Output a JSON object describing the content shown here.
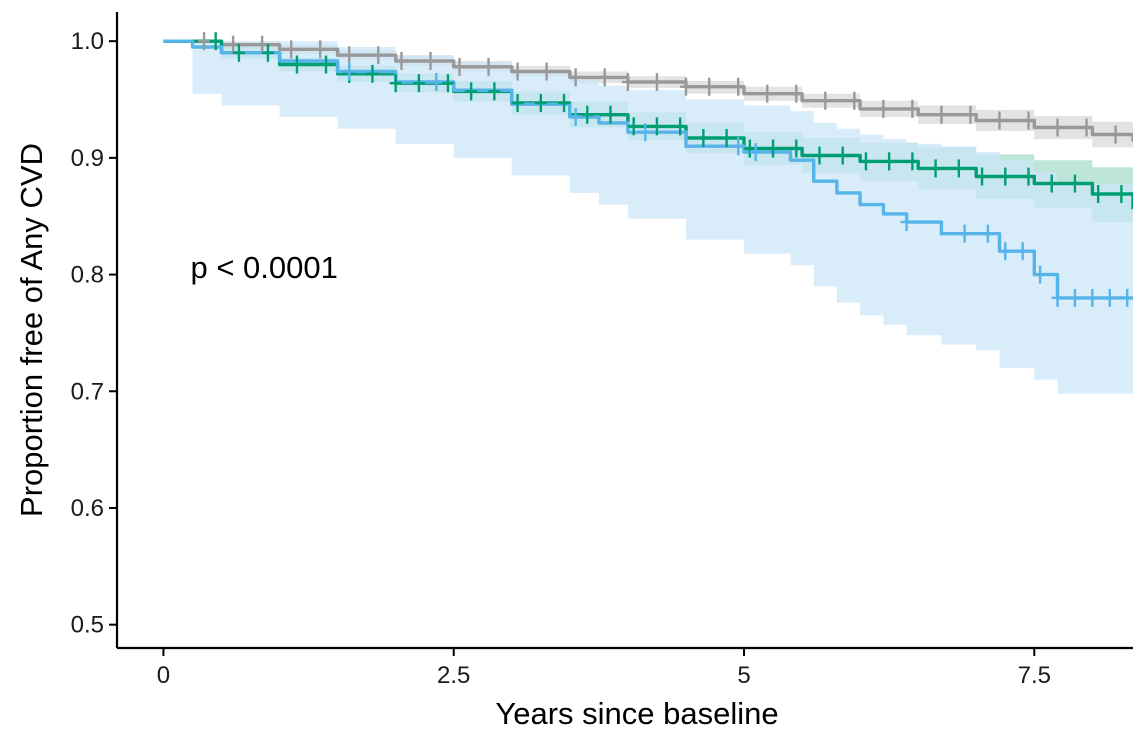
{
  "chart_data": {
    "type": "line",
    "title": "",
    "xlabel": "Years since baseline",
    "ylabel": "Proportion free of Any CVD",
    "xlim": [
      -0.4,
      8.35
    ],
    "ylim": [
      0.48,
      1.025
    ],
    "x_ticks": [
      {
        "value": 0,
        "label": "0"
      },
      {
        "value": 2.5,
        "label": "2.5"
      },
      {
        "value": 5,
        "label": "5"
      },
      {
        "value": 7.5,
        "label": "7.5"
      }
    ],
    "y_ticks": [
      {
        "value": 0.5,
        "label": "0.5"
      },
      {
        "value": 0.6,
        "label": "0.6"
      },
      {
        "value": 0.7,
        "label": "0.7"
      },
      {
        "value": 0.8,
        "label": "0.8"
      },
      {
        "value": 0.9,
        "label": "0.9"
      },
      {
        "value": 1.0,
        "label": "1.0"
      }
    ],
    "grid": false,
    "legend": "none",
    "annotation": {
      "text": "p < 0.0001",
      "x": 0.25,
      "y": 0.79
    },
    "series": [
      {
        "color": "#999999",
        "band_color": "#d9d9d9",
        "x": [
          0,
          0.5,
          1.0,
          1.5,
          2.0,
          2.5,
          3.0,
          3.5,
          4.0,
          4.5,
          5.0,
          5.5,
          6.0,
          6.5,
          7.0,
          7.5,
          8.0,
          8.35
        ],
        "y": [
          1.0,
          0.997,
          0.993,
          0.988,
          0.983,
          0.978,
          0.974,
          0.969,
          0.965,
          0.961,
          0.955,
          0.949,
          0.942,
          0.937,
          0.932,
          0.926,
          0.92,
          0.914
        ],
        "lower": [
          1.0,
          0.994,
          0.989,
          0.984,
          0.979,
          0.974,
          0.97,
          0.964,
          0.96,
          0.955,
          0.949,
          0.943,
          0.935,
          0.929,
          0.923,
          0.916,
          0.909,
          0.901
        ],
        "upper": [
          1.0,
          1.0,
          0.997,
          0.992,
          0.988,
          0.983,
          0.979,
          0.974,
          0.97,
          0.966,
          0.961,
          0.955,
          0.949,
          0.945,
          0.941,
          0.936,
          0.931,
          0.927
        ],
        "censor_x": [
          0.35,
          0.6,
          0.85,
          1.1,
          1.35,
          1.6,
          1.85,
          2.05,
          2.3,
          2.55,
          2.8,
          3.05,
          3.3,
          3.55,
          3.8,
          4.0,
          4.25,
          4.5,
          4.7,
          4.95,
          5.2,
          5.45,
          5.7,
          5.95,
          6.2,
          6.45,
          6.7,
          6.95,
          7.2,
          7.45,
          7.7,
          7.95,
          8.2
        ]
      },
      {
        "color": "#009e73",
        "band_color": "#a7dccb",
        "x": [
          0,
          0.5,
          1.0,
          1.5,
          2.0,
          2.5,
          3.0,
          3.5,
          4.0,
          4.5,
          5.0,
          5.5,
          6.0,
          6.5,
          7.0,
          7.5,
          8.0,
          8.35
        ],
        "y": [
          1.0,
          0.99,
          0.98,
          0.972,
          0.964,
          0.957,
          0.947,
          0.937,
          0.927,
          0.917,
          0.908,
          0.902,
          0.897,
          0.891,
          0.884,
          0.878,
          0.869,
          0.856
        ],
        "lower": [
          1.0,
          0.985,
          0.974,
          0.965,
          0.956,
          0.948,
          0.937,
          0.926,
          0.915,
          0.904,
          0.894,
          0.887,
          0.88,
          0.873,
          0.865,
          0.857,
          0.845,
          0.828
        ],
        "upper": [
          1.0,
          0.995,
          0.986,
          0.979,
          0.972,
          0.966,
          0.957,
          0.948,
          0.939,
          0.93,
          0.922,
          0.917,
          0.913,
          0.909,
          0.903,
          0.898,
          0.892,
          0.884
        ],
        "censor_x": [
          0.45,
          0.65,
          0.9,
          1.15,
          1.4,
          1.6,
          1.8,
          2.0,
          2.2,
          2.45,
          2.65,
          2.85,
          3.05,
          3.25,
          3.45,
          3.65,
          3.85,
          4.05,
          4.25,
          4.45,
          4.65,
          4.85,
          5.05,
          5.25,
          5.45,
          5.65,
          5.85,
          6.05,
          6.25,
          6.45,
          6.65,
          6.85,
          7.05,
          7.25,
          7.45,
          7.65,
          7.85,
          8.05,
          8.25
        ]
      },
      {
        "color": "#56b4e9",
        "band_color": "#cbe6f8",
        "x": [
          0,
          0.25,
          0.5,
          1.0,
          1.5,
          2.0,
          2.5,
          3.0,
          3.5,
          3.75,
          4.0,
          4.5,
          5.0,
          5.4,
          5.6,
          5.8,
          6.0,
          6.2,
          6.4,
          6.7,
          7.0,
          7.2,
          7.5,
          7.7,
          8.35
        ],
        "y": [
          1.0,
          0.995,
          0.99,
          0.983,
          0.974,
          0.965,
          0.958,
          0.946,
          0.935,
          0.93,
          0.922,
          0.91,
          0.905,
          0.898,
          0.88,
          0.87,
          0.86,
          0.852,
          0.845,
          0.835,
          0.835,
          0.82,
          0.8,
          0.78,
          0.78
        ],
        "lower": [
          1.0,
          0.955,
          0.945,
          0.935,
          0.925,
          0.912,
          0.9,
          0.885,
          0.87,
          0.86,
          0.848,
          0.83,
          0.818,
          0.808,
          0.79,
          0.776,
          0.765,
          0.757,
          0.748,
          0.74,
          0.735,
          0.72,
          0.71,
          0.698,
          0.698
        ],
        "upper": [
          1.0,
          1.0,
          1.0,
          1.0,
          0.995,
          0.988,
          0.982,
          0.975,
          0.967,
          0.962,
          0.958,
          0.95,
          0.945,
          0.94,
          0.93,
          0.925,
          0.92,
          0.916,
          0.912,
          0.91,
          0.905,
          0.898,
          0.888,
          0.878,
          0.878
        ],
        "censor_x": [
          1.6,
          2.35,
          3.55,
          4.15,
          4.95,
          5.1,
          6.4,
          6.9,
          7.1,
          7.25,
          7.4,
          7.55,
          7.7,
          7.85,
          8.0,
          8.15,
          8.3
        ]
      }
    ]
  }
}
